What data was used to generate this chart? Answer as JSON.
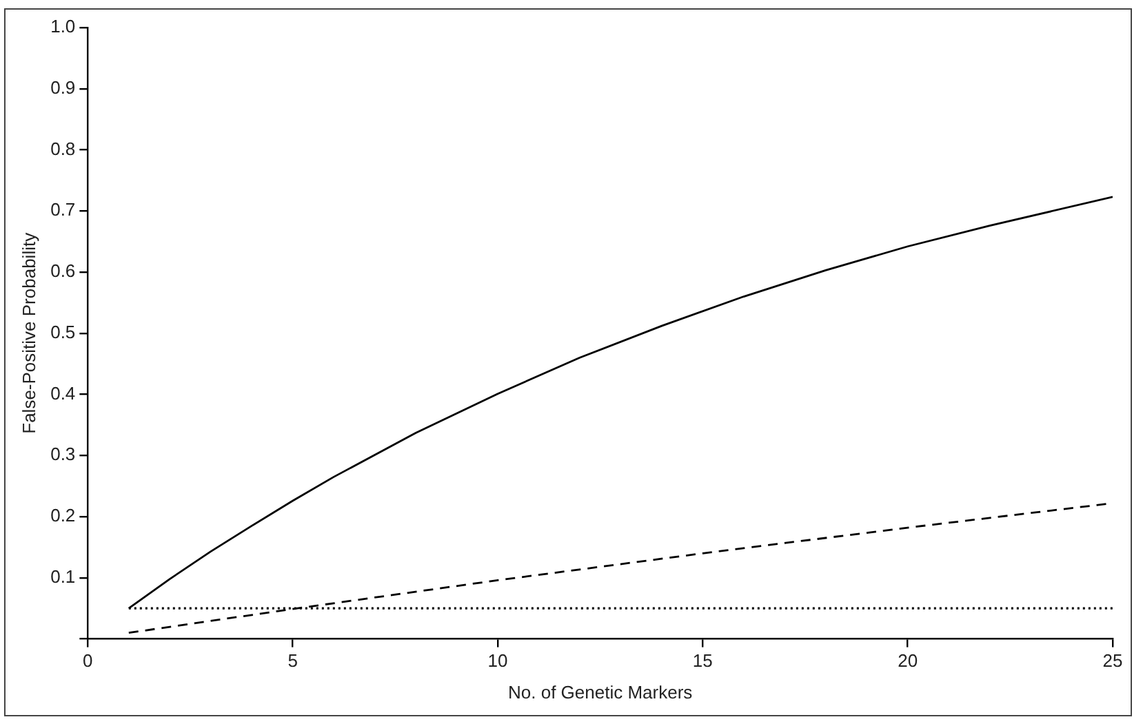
{
  "chart_data": {
    "type": "line",
    "xlabel": "No. of Genetic Markers",
    "ylabel": "False-Positive Probability",
    "xlim": [
      0,
      25
    ],
    "xticks": [
      0,
      5,
      10,
      15,
      20,
      25
    ],
    "ylim": [
      0,
      1
    ],
    "yticks": [
      {
        "value": 0,
        "label": null
      },
      0.1,
      0.2,
      0.3,
      0.4,
      0.5,
      0.6,
      0.7,
      0.8,
      0.9,
      {
        "value": 1,
        "label": "1.0"
      }
    ],
    "marker": "none",
    "legend": false,
    "series": [
      {
        "color": "#000000",
        "line_style": "solid",
        "x": [
          1,
          2,
          3,
          4,
          5,
          6,
          8,
          10,
          12,
          14,
          16,
          18,
          20,
          22,
          25
        ],
        "values": [
          0.05,
          0.098,
          0.143,
          0.185,
          0.226,
          0.265,
          0.337,
          0.401,
          0.46,
          0.512,
          0.56,
          0.603,
          0.642,
          0.676,
          0.723
        ]
      },
      {
        "color": "#000000",
        "line_style": "dashed",
        "x": [
          1,
          5,
          10,
          15,
          20,
          25
        ],
        "values": [
          0.01,
          0.049,
          0.096,
          0.14,
          0.182,
          0.222
        ]
      },
      {
        "color": "#000000",
        "line_style": "dotted",
        "x": [
          1,
          25
        ],
        "values": [
          0.05,
          0.05
        ]
      }
    ]
  }
}
